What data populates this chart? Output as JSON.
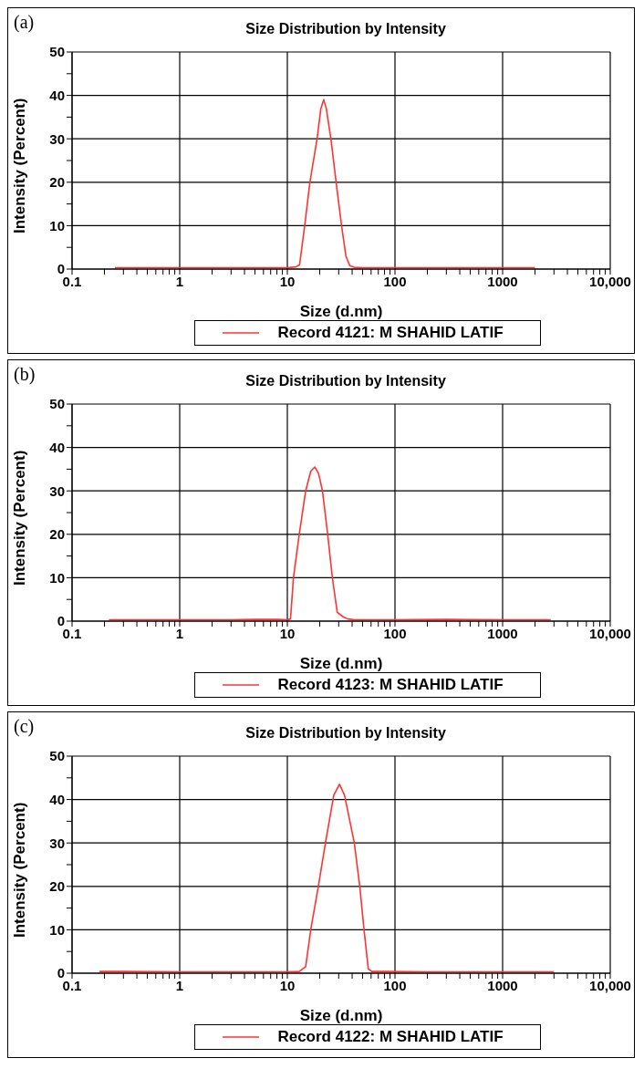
{
  "chart_data": [
    {
      "type": "line",
      "title": "Size Distribution by Intensity",
      "xlabel": "Size (d.nm)",
      "ylabel": "Intensity (Percent)",
      "annotations": [
        "(a)"
      ],
      "log": "x",
      "grid": true,
      "legend": "bottom",
      "xlim": [
        0.1,
        10000
      ],
      "ylim": [
        0,
        50
      ],
      "xticks": [
        0.1,
        {
          "value": 0.2,
          "label": null
        },
        {
          "value": 0.3,
          "label": null
        },
        {
          "value": 0.4,
          "label": null
        },
        {
          "value": 0.5,
          "label": null
        },
        {
          "value": 0.6,
          "label": null
        },
        {
          "value": 0.7,
          "label": null
        },
        {
          "value": 0.8,
          "label": null
        },
        {
          "value": 0.9,
          "label": null
        },
        1,
        {
          "value": 2,
          "label": null
        },
        {
          "value": 3,
          "label": null
        },
        {
          "value": 4,
          "label": null
        },
        {
          "value": 5,
          "label": null
        },
        {
          "value": 6,
          "label": null
        },
        {
          "value": 7,
          "label": null
        },
        {
          "value": 8,
          "label": null
        },
        {
          "value": 9,
          "label": null
        },
        10,
        {
          "value": 20,
          "label": null
        },
        {
          "value": 30,
          "label": null
        },
        {
          "value": 40,
          "label": null
        },
        {
          "value": 50,
          "label": null
        },
        {
          "value": 60,
          "label": null
        },
        {
          "value": 70,
          "label": null
        },
        {
          "value": 80,
          "label": null
        },
        {
          "value": 90,
          "label": null
        },
        100,
        {
          "value": 200,
          "label": null
        },
        {
          "value": 300,
          "label": null
        },
        {
          "value": 400,
          "label": null
        },
        {
          "value": 500,
          "label": null
        },
        {
          "value": 600,
          "label": null
        },
        {
          "value": 700,
          "label": null
        },
        {
          "value": 800,
          "label": null
        },
        {
          "value": 900,
          "label": null
        },
        1000,
        {
          "value": 2000,
          "label": null
        },
        {
          "value": 3000,
          "label": null
        },
        {
          "value": 4000,
          "label": null
        },
        {
          "value": 5000,
          "label": null
        },
        {
          "value": 6000,
          "label": null
        },
        {
          "value": 7000,
          "label": null
        },
        {
          "value": 8000,
          "label": null
        },
        {
          "value": 9000,
          "label": null
        },
        {
          "value": 10000,
          "label": "10,000"
        }
      ],
      "yticks": [
        0,
        {
          "value": 5,
          "label": null
        },
        10,
        {
          "value": 15,
          "label": null
        },
        20,
        {
          "value": 25,
          "label": null
        },
        30,
        {
          "value": 35,
          "label": null
        },
        40,
        {
          "value": 45,
          "label": null
        },
        50
      ],
      "series": [
        {
          "name": "Record 4121: M SHAHID LATIF",
          "color": "#ff3333",
          "x": [
            0.25,
            1,
            5,
            10,
            12,
            13,
            14.5,
            16.2,
            18.9,
            20.5,
            21.8,
            23,
            25.4,
            28.4,
            31.9,
            35,
            38,
            42,
            50,
            100,
            500,
            2000
          ],
          "values": [
            0.3,
            0.3,
            0.3,
            0.3,
            0.5,
            1,
            10,
            20,
            30,
            37,
            39,
            37,
            30,
            20,
            10,
            3,
            0.8,
            0.4,
            0.3,
            0.3,
            0.3,
            0.3
          ]
        }
      ]
    },
    {
      "type": "line",
      "title": "Size Distribution by Intensity",
      "xlabel": "Size (d.nm)",
      "ylabel": "Intensity (Percent)",
      "annotations": [
        "(b)"
      ],
      "log": "x",
      "grid": true,
      "legend": "bottom",
      "xlim": [
        0.1,
        10000
      ],
      "ylim": [
        0,
        50
      ],
      "xticks": [
        0.1,
        {
          "value": 0.2,
          "label": null
        },
        {
          "value": 0.3,
          "label": null
        },
        {
          "value": 0.4,
          "label": null
        },
        {
          "value": 0.5,
          "label": null
        },
        {
          "value": 0.6,
          "label": null
        },
        {
          "value": 0.7,
          "label": null
        },
        {
          "value": 0.8,
          "label": null
        },
        {
          "value": 0.9,
          "label": null
        },
        1,
        {
          "value": 2,
          "label": null
        },
        {
          "value": 3,
          "label": null
        },
        {
          "value": 4,
          "label": null
        },
        {
          "value": 5,
          "label": null
        },
        {
          "value": 6,
          "label": null
        },
        {
          "value": 7,
          "label": null
        },
        {
          "value": 8,
          "label": null
        },
        {
          "value": 9,
          "label": null
        },
        10,
        {
          "value": 20,
          "label": null
        },
        {
          "value": 30,
          "label": null
        },
        {
          "value": 40,
          "label": null
        },
        {
          "value": 50,
          "label": null
        },
        {
          "value": 60,
          "label": null
        },
        {
          "value": 70,
          "label": null
        },
        {
          "value": 80,
          "label": null
        },
        {
          "value": 90,
          "label": null
        },
        100,
        {
          "value": 200,
          "label": null
        },
        {
          "value": 300,
          "label": null
        },
        {
          "value": 400,
          "label": null
        },
        {
          "value": 500,
          "label": null
        },
        {
          "value": 600,
          "label": null
        },
        {
          "value": 700,
          "label": null
        },
        {
          "value": 800,
          "label": null
        },
        {
          "value": 900,
          "label": null
        },
        1000,
        {
          "value": 2000,
          "label": null
        },
        {
          "value": 3000,
          "label": null
        },
        {
          "value": 4000,
          "label": null
        },
        {
          "value": 5000,
          "label": null
        },
        {
          "value": 6000,
          "label": null
        },
        {
          "value": 7000,
          "label": null
        },
        {
          "value": 8000,
          "label": null
        },
        {
          "value": 9000,
          "label": null
        },
        {
          "value": 10000,
          "label": "10,000"
        }
      ],
      "yticks": [
        0,
        {
          "value": 5,
          "label": null
        },
        10,
        {
          "value": 15,
          "label": null
        },
        20,
        {
          "value": 25,
          "label": null
        },
        30,
        {
          "value": 35,
          "label": null
        },
        40,
        {
          "value": 45,
          "label": null
        },
        50
      ],
      "series": [
        {
          "name": "Record 4123: M SHAHID LATIF",
          "color": "#ff3333",
          "x": [
            0.22,
            1,
            3,
            5,
            8,
            10,
            10.7,
            11.4,
            12.9,
            14.8,
            16.5,
            18,
            19.5,
            21.2,
            23.7,
            26.2,
            29.1,
            33,
            36.6,
            42,
            100,
            300,
            1000,
            2800
          ],
          "values": [
            0.3,
            0.3,
            0.3,
            0.4,
            0.4,
            0.3,
            0.5,
            10,
            20,
            30,
            34.5,
            35.5,
            34,
            30,
            20,
            10,
            2,
            1,
            0.5,
            0.3,
            0.3,
            0.4,
            0.3,
            0.3
          ]
        }
      ]
    },
    {
      "type": "line",
      "title": "Size Distribution by Intensity",
      "xlabel": "Size (d.nm)",
      "ylabel": "Intensity (Percent)",
      "annotations": [
        "(c)"
      ],
      "log": "x",
      "grid": true,
      "legend": "bottom",
      "xlim": [
        0.1,
        10000
      ],
      "ylim": [
        0,
        50
      ],
      "xticks": [
        0.1,
        {
          "value": 0.2,
          "label": null
        },
        {
          "value": 0.3,
          "label": null
        },
        {
          "value": 0.4,
          "label": null
        },
        {
          "value": 0.5,
          "label": null
        },
        {
          "value": 0.6,
          "label": null
        },
        {
          "value": 0.7,
          "label": null
        },
        {
          "value": 0.8,
          "label": null
        },
        {
          "value": 0.9,
          "label": null
        },
        1,
        {
          "value": 2,
          "label": null
        },
        {
          "value": 3,
          "label": null
        },
        {
          "value": 4,
          "label": null
        },
        {
          "value": 5,
          "label": null
        },
        {
          "value": 6,
          "label": null
        },
        {
          "value": 7,
          "label": null
        },
        {
          "value": 8,
          "label": null
        },
        {
          "value": 9,
          "label": null
        },
        10,
        {
          "value": 20,
          "label": null
        },
        {
          "value": 30,
          "label": null
        },
        {
          "value": 40,
          "label": null
        },
        {
          "value": 50,
          "label": null
        },
        {
          "value": 60,
          "label": null
        },
        {
          "value": 70,
          "label": null
        },
        {
          "value": 80,
          "label": null
        },
        {
          "value": 90,
          "label": null
        },
        100,
        {
          "value": 200,
          "label": null
        },
        {
          "value": 300,
          "label": null
        },
        {
          "value": 400,
          "label": null
        },
        {
          "value": 500,
          "label": null
        },
        {
          "value": 600,
          "label": null
        },
        {
          "value": 700,
          "label": null
        },
        {
          "value": 800,
          "label": null
        },
        {
          "value": 900,
          "label": null
        },
        1000,
        {
          "value": 2000,
          "label": null
        },
        {
          "value": 3000,
          "label": null
        },
        {
          "value": 4000,
          "label": null
        },
        {
          "value": 5000,
          "label": null
        },
        {
          "value": 6000,
          "label": null
        },
        {
          "value": 7000,
          "label": null
        },
        {
          "value": 8000,
          "label": null
        },
        {
          "value": 9000,
          "label": null
        },
        {
          "value": 10000,
          "label": "10,000"
        }
      ],
      "yticks": [
        0,
        {
          "value": 5,
          "label": null
        },
        10,
        {
          "value": 15,
          "label": null
        },
        20,
        {
          "value": 25,
          "label": null
        },
        30,
        {
          "value": 35,
          "label": null
        },
        40,
        {
          "value": 45,
          "label": null
        },
        50
      ],
      "series": [
        {
          "name": "Record 4122: M SHAHID LATIF",
          "color": "#ff3333",
          "x": [
            0.18,
            0.3,
            1,
            5,
            10,
            12.9,
            14.8,
            16.5,
            19.4,
            22.6,
            27,
            30.5,
            34,
            41.9,
            47.1,
            51.6,
            56.5,
            61,
            80,
            200,
            1000,
            3000
          ],
          "values": [
            0.4,
            0.4,
            0.3,
            0.3,
            0.3,
            0.4,
            1.5,
            10,
            20,
            30,
            41,
            43.5,
            41,
            30,
            20,
            10,
            1,
            0.4,
            0.4,
            0.3,
            0.3,
            0.3
          ]
        }
      ]
    }
  ]
}
